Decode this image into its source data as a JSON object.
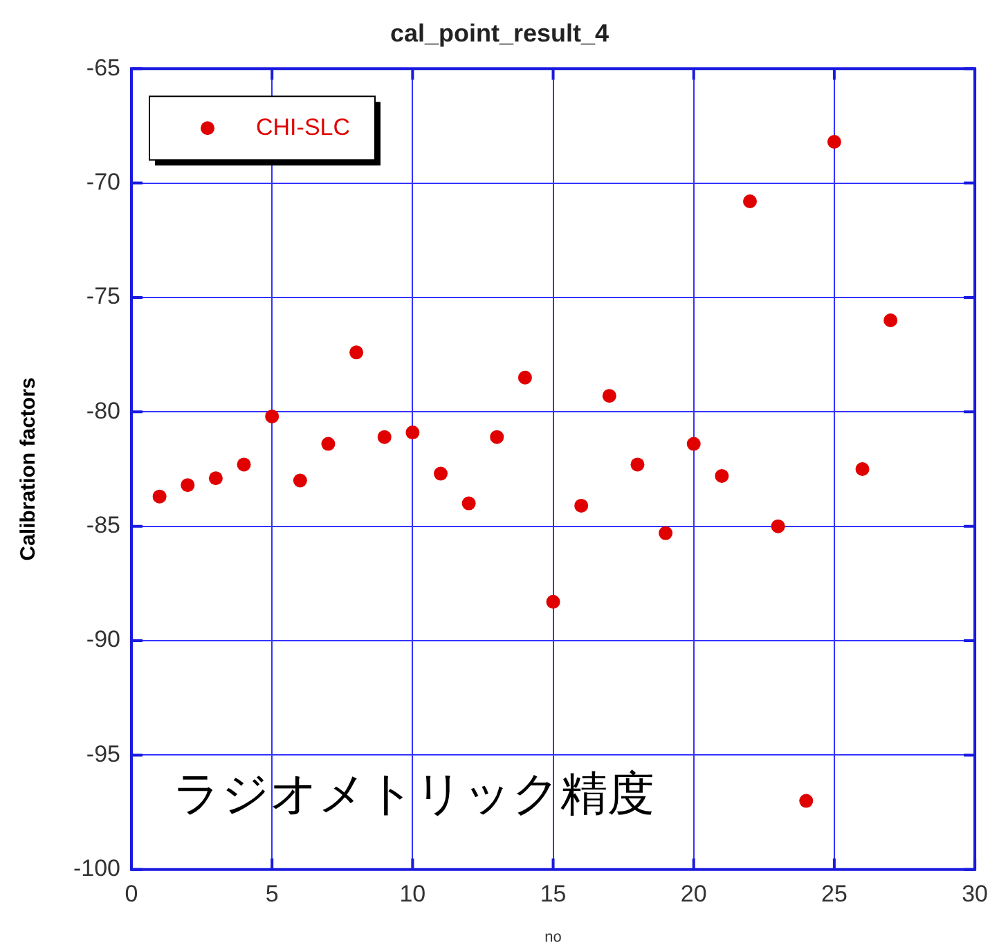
{
  "chart_data": {
    "type": "scatter",
    "title": "cal_point_result_4",
    "xlabel": "no",
    "ylabel": "Calibration factors",
    "x": [
      1,
      2,
      3,
      4,
      5,
      6,
      7,
      8,
      9,
      10,
      11,
      12,
      13,
      14,
      15,
      16,
      17,
      18,
      19,
      20,
      21,
      22,
      23,
      24,
      25,
      26,
      27
    ],
    "series": [
      {
        "name": "CHI-SLC",
        "color": "#e00000",
        "values": [
          -83.7,
          -83.2,
          -82.9,
          -82.3,
          -80.2,
          -83.0,
          -81.4,
          -77.4,
          -81.1,
          -80.9,
          -82.7,
          -84.0,
          -81.1,
          -78.5,
          -88.3,
          -84.1,
          -79.3,
          -82.3,
          -85.3,
          -81.4,
          -82.8,
          -70.8,
          -85.0,
          -97.0,
          -68.2,
          -82.5,
          -76.0
        ]
      }
    ],
    "xlim": [
      0,
      30
    ],
    "xticks": [
      0,
      5,
      10,
      15,
      20,
      25,
      30
    ],
    "ylim": [
      -100,
      -65
    ],
    "yticks": [
      -100,
      -95,
      -90,
      -85,
      -80,
      -75,
      -70,
      -65
    ],
    "grid": true,
    "legend": "top left",
    "marker": "circle",
    "annotations": [
      "ラジオメトリック精度"
    ]
  }
}
